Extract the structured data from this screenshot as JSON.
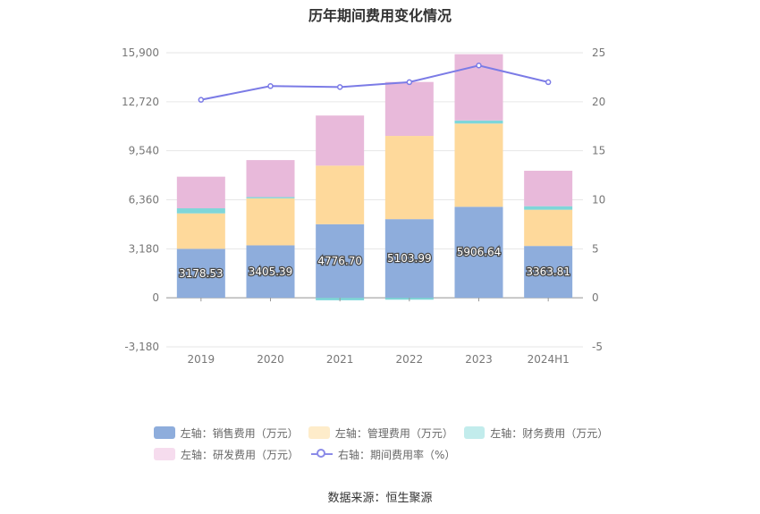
{
  "chart_data": {
    "type": "bar",
    "title": "历年期间费用变化情况",
    "categories": [
      "2019",
      "2020",
      "2021",
      "2022",
      "2023",
      "2024H1"
    ],
    "left_axis": {
      "ticks": [
        "15,900",
        "12,720",
        "9,540",
        "6,360",
        "3,180",
        "0",
        "-3,180"
      ],
      "ylim": [
        -3180,
        15900
      ]
    },
    "right_axis": {
      "ticks": [
        "25",
        "20",
        "15",
        "10",
        "5",
        "0",
        "-5"
      ],
      "ylim": [
        -5,
        25
      ]
    },
    "series": [
      {
        "name": "左轴：销售费用（万元）",
        "axis": "left",
        "stack": true,
        "values": [
          3178.53,
          3405.39,
          4776.7,
          5103.99,
          5906.64,
          3363.81
        ],
        "labels": [
          "3178.53",
          "3405.39",
          "4776.70",
          "5103.99",
          "5906.64",
          "3363.81"
        ]
      },
      {
        "name": "左轴：管理费用（万元）",
        "axis": "left",
        "stack": true,
        "values": [
          2300,
          3050,
          3800,
          5400,
          5400,
          2350
        ]
      },
      {
        "name": "左轴：财务费用（万元）",
        "axis": "left",
        "stack": true,
        "values": [
          330,
          80,
          -160,
          -120,
          200,
          230
        ]
      },
      {
        "name": "左轴：研发费用（万元）",
        "axis": "left",
        "stack": true,
        "values": [
          2050,
          2400,
          3250,
          3500,
          4300,
          2300
        ]
      },
      {
        "name": "右轴：期间费用率（%）",
        "axis": "right",
        "type": "line",
        "values": [
          20.2,
          21.6,
          21.5,
          22.0,
          23.7,
          22.0
        ]
      }
    ]
  },
  "colors": {
    "sales": "#8eaddc",
    "admin": "#fed99b",
    "finance": "#7fd6d9",
    "rd": "#e8b9da",
    "rate": "#7b7be6"
  },
  "legend": {
    "sales": "左轴：销售费用（万元）",
    "admin": "左轴：管理费用（万元）",
    "finance": "左轴：财务费用（万元）",
    "rd": "左轴：研发费用（万元）",
    "rate": "右轴：期间费用率（%）"
  },
  "source": "数据来源：恒生聚源"
}
